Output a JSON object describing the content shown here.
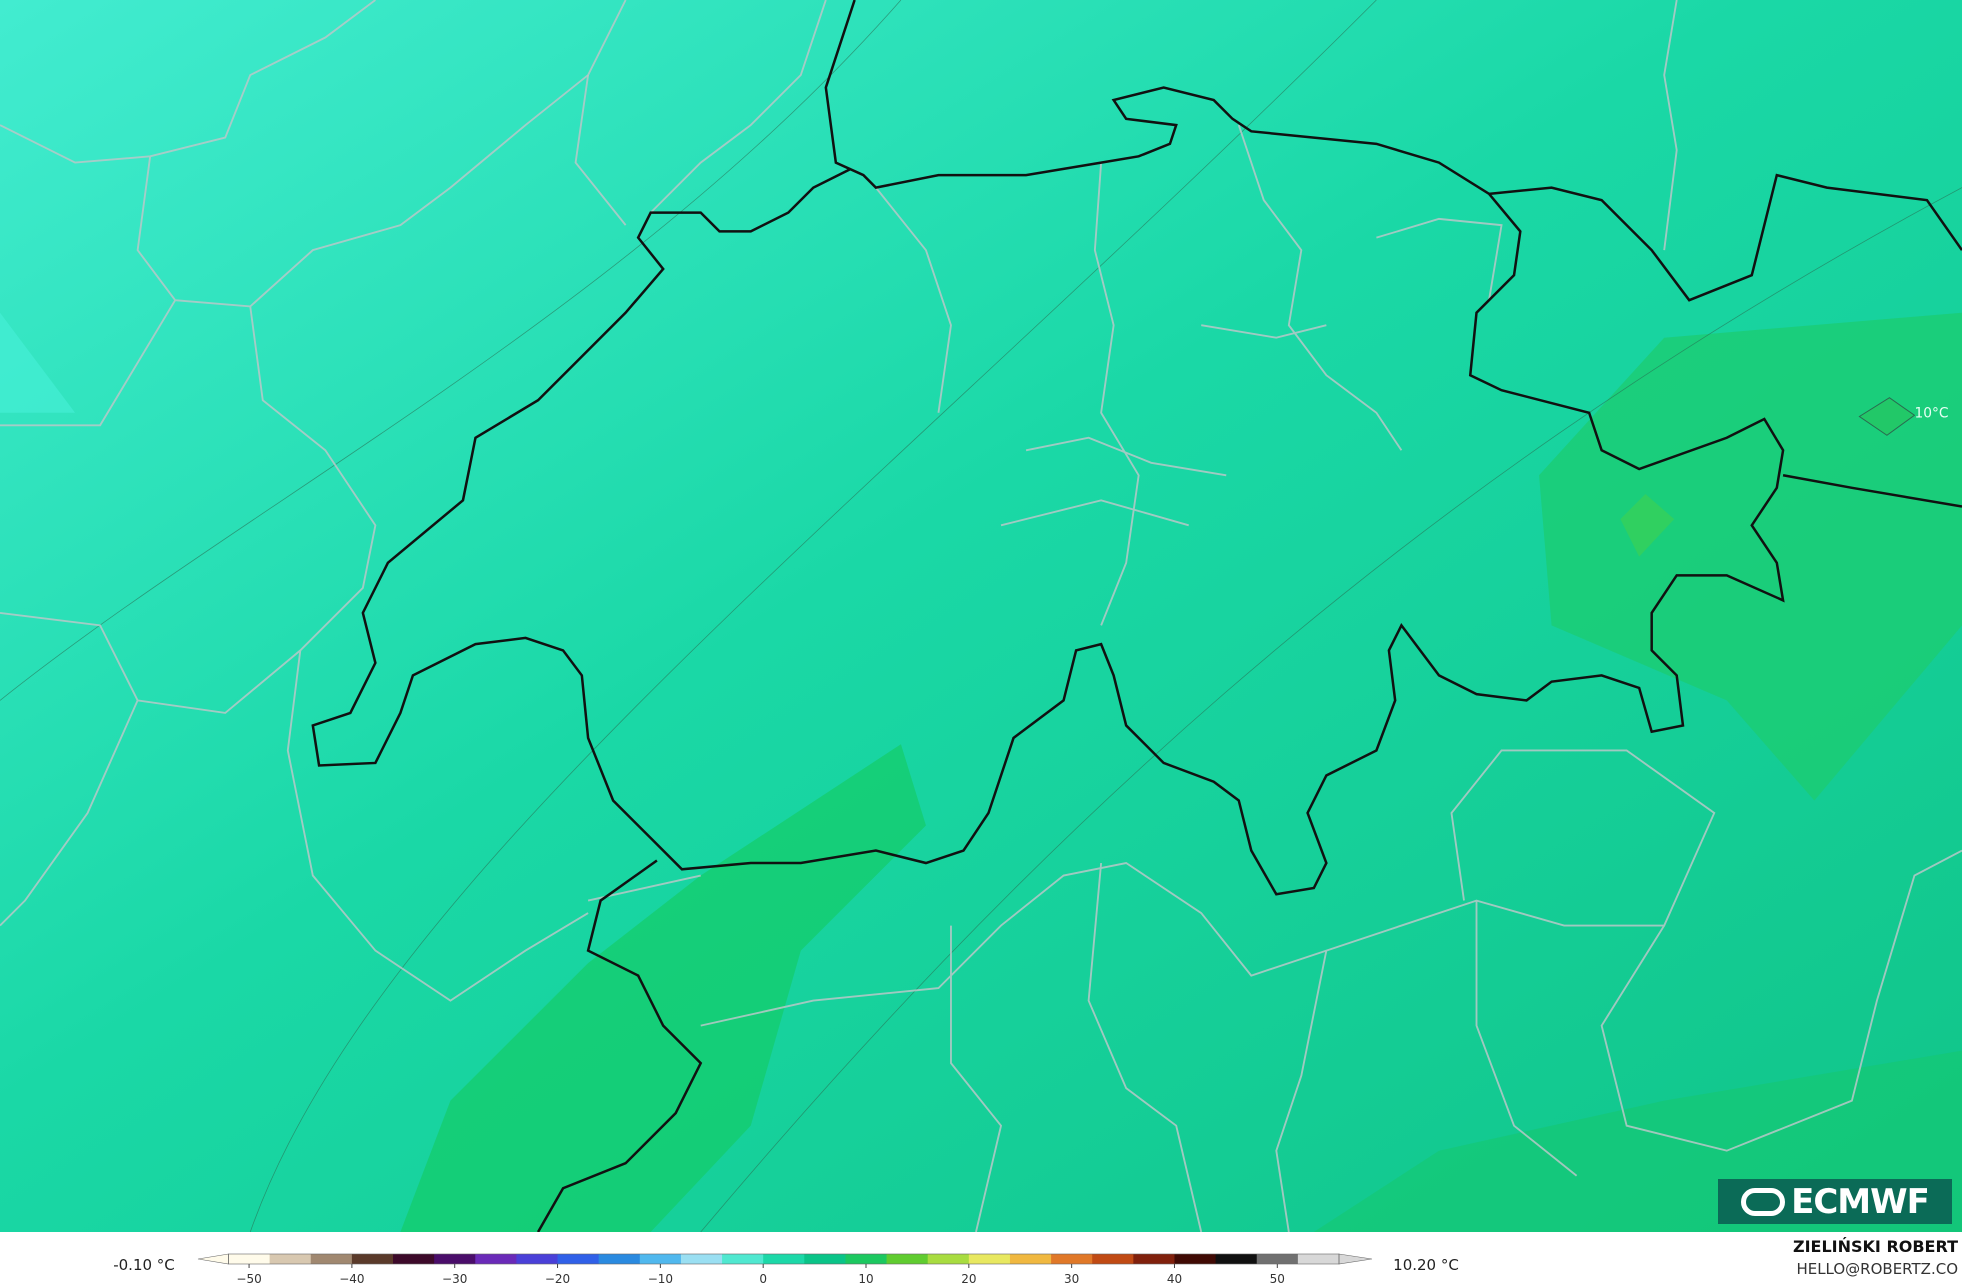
{
  "map": {
    "contour_label": "10°C",
    "logo": "ECMWF",
    "credits": {
      "author": "ZIELIŃSKI ROBERT",
      "contact": "HELLO@ROBERTZ.CO"
    }
  },
  "colorbar": {
    "min_label": "-0.10 °C",
    "max_label": "10.20 °C",
    "range": [
      -52,
      56
    ],
    "colors": [
      "#fffbea",
      "#d8c8b0",
      "#a08870",
      "#5a3a2a",
      "#3d0a2a",
      "#4a0d6a",
      "#6a2ab8",
      "#4a40d8",
      "#3060e8",
      "#2a8ae0",
      "#50b8ee",
      "#9adff2",
      "#50e8d0",
      "#1cd8a8",
      "#0ac488",
      "#1cc860",
      "#60cc30",
      "#a8dc40",
      "#e8e860",
      "#f0b840",
      "#e07828",
      "#c04a14",
      "#80200c",
      "#400a04",
      "#101010",
      "#707070",
      "#d8d8d8"
    ],
    "ticks": [
      {
        "value": -50,
        "label": "−50"
      },
      {
        "value": -40,
        "label": "−40"
      },
      {
        "value": -30,
        "label": "−30"
      },
      {
        "value": -20,
        "label": "−20"
      },
      {
        "value": -10,
        "label": "−10"
      },
      0,
      10,
      20,
      30,
      40,
      50
    ]
  }
}
